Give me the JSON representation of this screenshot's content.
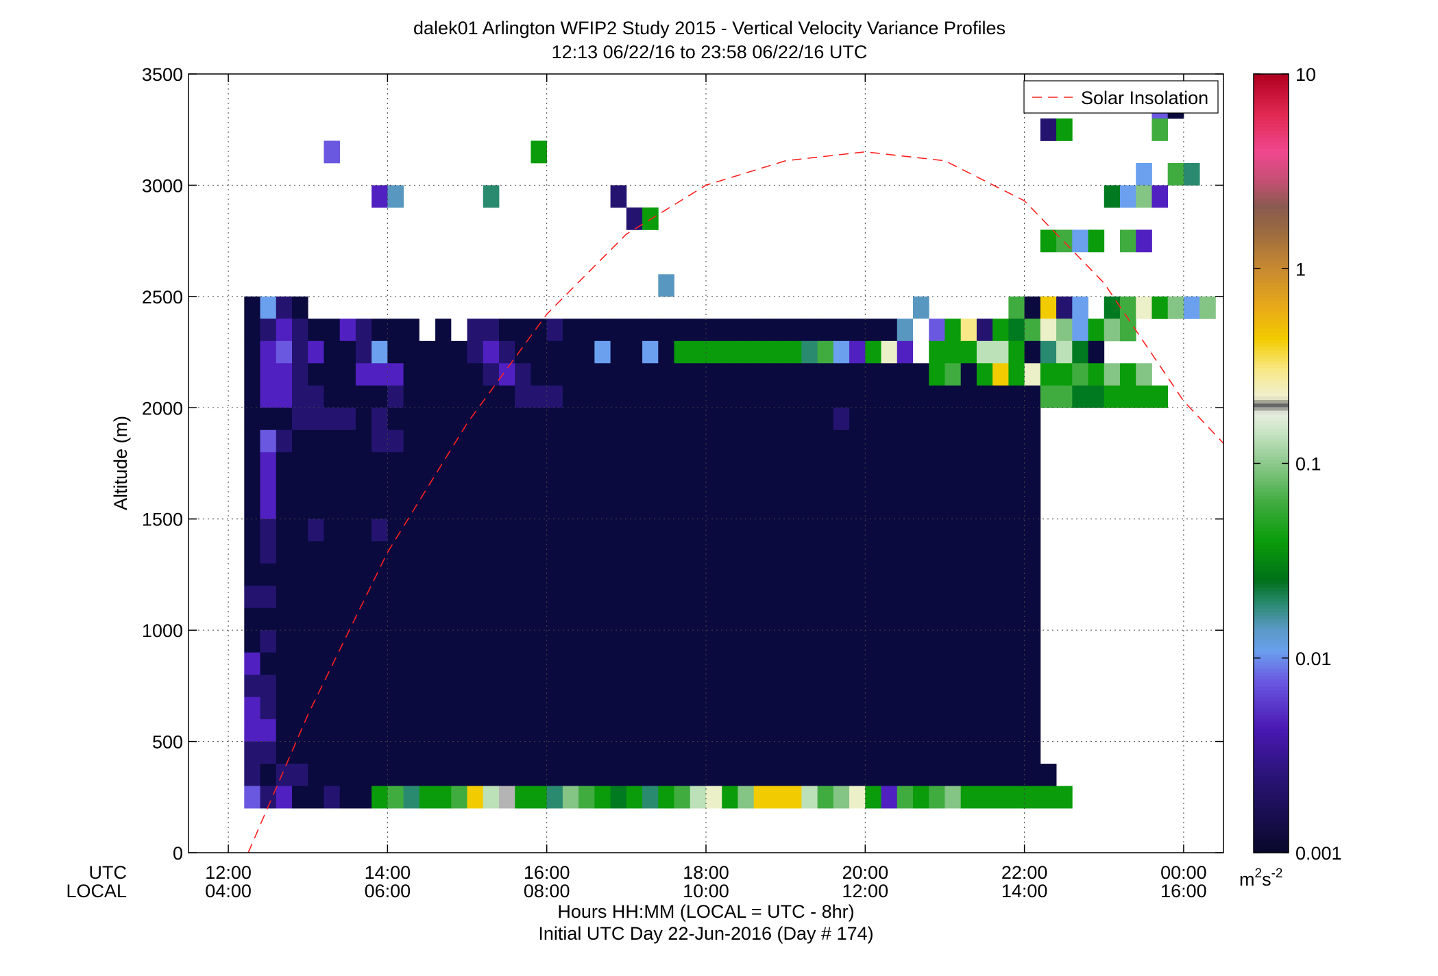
{
  "chart_data": {
    "type": "heatmap",
    "title": "dalek01 Arlington WFIP2 Study 2015 - Vertical Velocity Variance Profiles",
    "subtitle": "12:13 06/22/16 to 23:58 06/22/16  UTC",
    "ylabel": "Altitude (m)",
    "xlabel": "Hours HH:MM  (LOCAL = UTC - 8hr)",
    "xlabel2": "Initial UTC Day 22-Jun-2016 (Day # 174)",
    "x_row_labels": [
      "UTC",
      "LOCAL"
    ],
    "x_ticks_hours": [
      12,
      14,
      16,
      18,
      20,
      22,
      24
    ],
    "x_tick_labels_utc": [
      "12:00",
      "14:00",
      "16:00",
      "18:00",
      "20:00",
      "22:00",
      "00:00"
    ],
    "x_tick_labels_local": [
      "04:00",
      "06:00",
      "08:00",
      "10:00",
      "12:00",
      "14:00",
      "16:00"
    ],
    "xlim_hours": [
      11.5,
      24.5
    ],
    "ylim": [
      0,
      3500
    ],
    "y_ticks": [
      0,
      500,
      1000,
      1500,
      2000,
      2500,
      3000,
      3500
    ],
    "y_tick_labels": [
      "0",
      "500",
      "1000",
      "1500",
      "2000",
      "2500",
      "3000",
      "3500"
    ],
    "grid": true,
    "legend": {
      "entries": [
        "Solar Insolation"
      ],
      "placement": "top-right"
    },
    "colorbar": {
      "scale": "log",
      "range": [
        0.001,
        10
      ],
      "tick_labels": [
        "0.001",
        "0.01",
        "0.1",
        "1",
        "10"
      ],
      "unit_label": "m2s-2"
    },
    "solar_insolation": {
      "color": "#ff2020",
      "style": "dashed",
      "points": [
        {
          "hour": 12.25,
          "altitude": 0
        },
        {
          "hour": 13.0,
          "altitude": 620
        },
        {
          "hour": 14.0,
          "altitude": 1350
        },
        {
          "hour": 15.0,
          "altitude": 1930
        },
        {
          "hour": 16.0,
          "altitude": 2420
        },
        {
          "hour": 17.0,
          "altitude": 2780
        },
        {
          "hour": 18.0,
          "altitude": 3000
        },
        {
          "hour": 19.0,
          "altitude": 3110
        },
        {
          "hour": 20.0,
          "altitude": 3150
        },
        {
          "hour": 21.0,
          "altitude": 3110
        },
        {
          "hour": 22.0,
          "altitude": 2930
        },
        {
          "hour": 23.0,
          "altitude": 2560
        },
        {
          "hour": 24.0,
          "altitude": 2030
        },
        {
          "hour": 24.5,
          "altitude": 1840
        }
      ]
    },
    "grid_spec": {
      "x_start_hour": 12.2,
      "x_step_hour": 0.2,
      "y_start_m": 200,
      "y_step_m": 100
    },
    "palette": {
      ".": null,
      "W": "#ffffff",
      "A": "#0a0a3e",
      "B": "#241470",
      "C": "#3c12a0",
      "D": "#5020c0",
      "E": "#6a58e0",
      "F": "#6aa0ee",
      "G": "#5898c0",
      "H": "#2a8a70",
      "I": "#007a20",
      "J": "#0a9c0a",
      "K": "#40ac40",
      "L": "#84c484",
      "M": "#bce0b8",
      "N": "#ecf0c8",
      "O": "#f8e888",
      "P": "#f2cc00",
      "Q": "#e8aa18",
      "R": "#c88a30",
      "S": "#b4b4b4"
    },
    "rows_top_to_bottom": [
      ".........................................................EA....",
      "..................................................BJ.....K...",
      ".....E............J.........................................",
      "........................................................F.KH",
      "........DG.....H.......B..............................IFLD...",
      "........................BJ....................................",
      "..................................................JKFJ.KD",
      "...........................................................",
      "..........................G..........................................",
      "AFBA......................................G.....KAPBF.IKNJLFL.",
      "ABDBAADBAAAWAWBBAAABAAAAAAAAAAAAAAAAAAAAAGWEJOBJIKNLFJLK",
      "ADEBDAABFAAAAABDBAAAAAFAAFAJJJJJJJJHKFDJNDWJJJMMJAHMIA",
      "ADDBAAADDDAAAAABDBAAAAAAAAAAAAAAAAAAAAAAAAAJKAJPJNJJKJLJL",
      "ADDBBAAAABAAAAAAABBBAAAAAAAAAAAAAAAAAAAAAAAAAAAAAAKKIIJJJJ",
      "AAABBBBABAAAAAAAAAAAAAAAAAAAAAAAAAAAABAAAAAAAAAAAA",
      "AEBAAAAABBAAAAAAAAAAAAAAAAAAAAAAAAAAAAAAAAAAAAAAAA",
      "ADAAAAAAAAAAAAAAAAAAAAAAAAAAAAAAAAAAAAAAAAAAAAAAAA",
      "ADAAAAAAAAAAAAAAAAAAAAAAAAAAAAAAAAAAAAAAAAAAAAAAAA",
      "ADAAAAAAAAAAAAAAAAAAAAAAAAAAAAAAAAAAAAAAAAAAAAAAAA",
      "ABAABAAABAAAAAAAAAAAAAAAAAAAAAAAAAAAAAAAAAAAAAAAAA",
      "ABAAAAAAAAAAAAAAAAAAAAAAAAAAAAAAAAAAAAAAAAAAAAAAAA",
      "AAAAAAAAAAAAAAAAAAAAAAAAAAAAAAAAAAAAAAAAAAAAAAAAAA",
      "BBAAAAAAAAAAAAAAAAAAAAAAAAAAAAAAAAAAAAAAAAAAAAAAAA",
      "AAAAAAAAAAAAAAAAAAAAAAAAAAAAAAAAAAAAAAAAAAAAAAAAAA",
      "ABAAAAAAAAAAAAAAAAAAAAAAAAAAAAAAAAAAAAAAAAAAAAAAAA",
      "DAAAAAAAAAAAAAAAAAAAAAAAAAAAAAAAAAAAAAAAAAAAAAAAAA",
      "BBAAAAAAAAAAAAAAAAAAAAAAAAAAAAAAAAAAAAAAAAAAAAAAAA",
      "DBAAAAAAAAAAAAAAAAAAAAAAAAAAAAAAAAAAAAAAAAAAAAAAAA",
      "DDAAAAAAAAAAAAAAAAAAAAAAAAAAAAAAAAAAAAAAAAAAAAAAAA",
      "BBAAAAAAAAAAAAAAAAAAAAAAAAAAAAAAAAAAAAAAAAAAAAAAAA",
      "BABBAAAAAAAAAAAAAAAAAAAAAAAAAAAAAAAAAAAAAAAAAAAAAAA",
      "EBDAABAAJKHJJKPMSJJHLKJIJHJKMNJLPPPMKLNJDKJKLJJJJJJJ"
    ]
  }
}
